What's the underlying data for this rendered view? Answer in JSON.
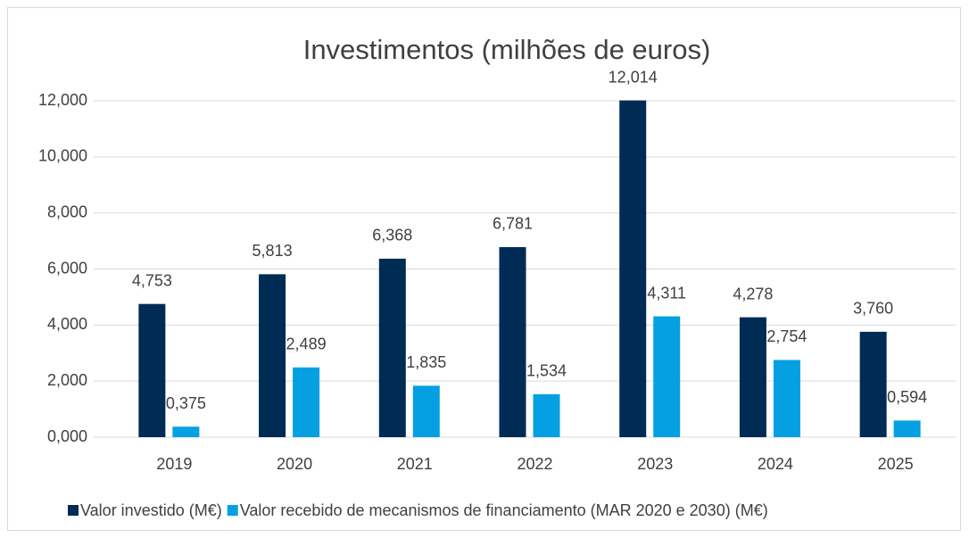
{
  "chart_data": {
    "type": "bar",
    "title": "Investimentos (milhões de euros)",
    "categories": [
      "2019",
      "2020",
      "2021",
      "2022",
      "2023",
      "2024",
      "2025"
    ],
    "series": [
      {
        "name": "Valor investido (M€)",
        "color": "#002b54",
        "values": [
          4.753,
          5.813,
          6.368,
          6.781,
          12.014,
          4.278,
          3.76
        ],
        "value_labels": [
          "4,753",
          "5,813",
          "6,368",
          "6,781",
          "12,014",
          "4,278",
          "3,760"
        ]
      },
      {
        "name": "Valor recebido de mecanismos de financiamento (MAR 2020 e 2030)  (M€)",
        "color": "#05a0e2",
        "values": [
          0.375,
          2.489,
          1.835,
          1.534,
          4.311,
          2.754,
          0.594
        ],
        "value_labels": [
          "0,375",
          "2,489",
          "1,835",
          "1,534",
          "4,311",
          "2,754",
          "0,594"
        ]
      }
    ],
    "ylim": [
      0,
      12
    ],
    "yticks": [
      {
        "value": 0,
        "label": "0,000"
      },
      {
        "value": 2,
        "label": "2,000"
      },
      {
        "value": 4,
        "label": "4,000"
      },
      {
        "value": 6,
        "label": "6,000"
      },
      {
        "value": 8,
        "label": "8,000"
      },
      {
        "value": 10,
        "label": "10,000"
      },
      {
        "value": 12,
        "label": "12,000"
      }
    ],
    "grid": true,
    "legend": "bottom"
  }
}
